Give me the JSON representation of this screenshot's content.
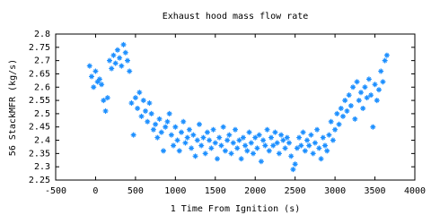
{
  "chart_data": {
    "type": "scatter",
    "title": "Exhaust hood mass flow rate",
    "x_label": "1 Time From Ignition (s)",
    "y_label": "56 StackMFR (kg/s)",
    "color": "#1e90ff",
    "grid": false,
    "xlim": [
      -500,
      4000
    ],
    "xticks": [
      -500,
      0,
      500,
      1000,
      1500,
      2000,
      2500,
      3000,
      3500,
      4000
    ],
    "ylim": [
      2.25,
      2.8
    ],
    "yticks": [
      2.25,
      2.3,
      2.35,
      2.4,
      2.45,
      2.5,
      2.55,
      2.6,
      2.65,
      2.7,
      2.75,
      2.8
    ],
    "x": [
      -75,
      -50,
      -25,
      0,
      25,
      50,
      75,
      100,
      125,
      150,
      175,
      200,
      225,
      250,
      275,
      300,
      325,
      350,
      375,
      400,
      425,
      450,
      475,
      500,
      525,
      550,
      575,
      600,
      625,
      650,
      675,
      700,
      725,
      750,
      775,
      800,
      825,
      850,
      875,
      900,
      925,
      950,
      975,
      1000,
      1025,
      1050,
      1075,
      1100,
      1125,
      1150,
      1175,
      1200,
      1225,
      1250,
      1275,
      1300,
      1325,
      1350,
      1375,
      1400,
      1425,
      1450,
      1475,
      1500,
      1525,
      1550,
      1575,
      1600,
      1625,
      1650,
      1675,
      1700,
      1725,
      1750,
      1775,
      1800,
      1825,
      1850,
      1875,
      1900,
      1925,
      1950,
      1975,
      2000,
      2025,
      2050,
      2075,
      2100,
      2125,
      2150,
      2175,
      2200,
      2225,
      2250,
      2275,
      2300,
      2325,
      2350,
      2375,
      2400,
      2425,
      2450,
      2475,
      2500,
      2525,
      2550,
      2575,
      2600,
      2625,
      2650,
      2675,
      2700,
      2725,
      2750,
      2775,
      2800,
      2825,
      2850,
      2875,
      2900,
      2925,
      2950,
      2975,
      3000,
      3025,
      3050,
      3075,
      3100,
      3125,
      3150,
      3175,
      3200,
      3225,
      3250,
      3275,
      3300,
      3325,
      3350,
      3375,
      3400,
      3425,
      3450,
      3475,
      3500,
      3525,
      3550,
      3575,
      3600,
      3625,
      3650
    ],
    "values": [
      2.68,
      2.64,
      2.6,
      2.66,
      2.62,
      2.63,
      2.61,
      2.55,
      2.51,
      2.56,
      2.7,
      2.67,
      2.72,
      2.69,
      2.74,
      2.71,
      2.68,
      2.76,
      2.73,
      2.7,
      2.66,
      2.54,
      2.42,
      2.56,
      2.52,
      2.58,
      2.49,
      2.55,
      2.51,
      2.47,
      2.54,
      2.5,
      2.44,
      2.46,
      2.41,
      2.48,
      2.43,
      2.36,
      2.45,
      2.47,
      2.5,
      2.42,
      2.38,
      2.45,
      2.4,
      2.36,
      2.43,
      2.47,
      2.39,
      2.41,
      2.44,
      2.37,
      2.42,
      2.34,
      2.4,
      2.46,
      2.38,
      2.41,
      2.35,
      2.43,
      2.4,
      2.37,
      2.44,
      2.39,
      2.33,
      2.41,
      2.38,
      2.45,
      2.36,
      2.4,
      2.42,
      2.35,
      2.39,
      2.44,
      2.37,
      2.4,
      2.33,
      2.41,
      2.38,
      2.36,
      2.43,
      2.39,
      2.35,
      2.41,
      2.37,
      2.42,
      2.32,
      2.4,
      2.38,
      2.44,
      2.36,
      2.41,
      2.38,
      2.43,
      2.39,
      2.35,
      2.42,
      2.4,
      2.37,
      2.41,
      2.39,
      2.34,
      2.29,
      2.31,
      2.37,
      2.41,
      2.38,
      2.43,
      2.36,
      2.4,
      2.38,
      2.42,
      2.35,
      2.39,
      2.44,
      2.37,
      2.33,
      2.41,
      2.38,
      2.36,
      2.42,
      2.47,
      2.4,
      2.44,
      2.5,
      2.46,
      2.52,
      2.49,
      2.55,
      2.51,
      2.57,
      2.53,
      2.6,
      2.48,
      2.62,
      2.55,
      2.58,
      2.52,
      2.6,
      2.56,
      2.63,
      2.57,
      2.45,
      2.61,
      2.55,
      2.59,
      2.66,
      2.62,
      2.7,
      2.72
    ]
  }
}
